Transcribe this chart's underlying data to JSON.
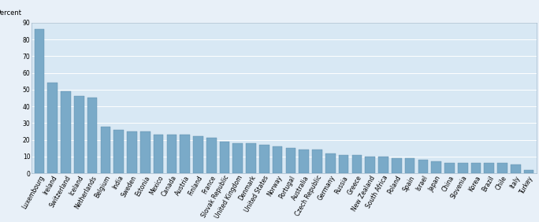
{
  "categories": [
    "Luxembourg",
    "Ireland",
    "Switzerland",
    "Iceland",
    "Netherlands",
    "Belgium",
    "India",
    "Sweden",
    "Estonia",
    "Mexico",
    "Canada",
    "Austria",
    "Finland",
    "France",
    "Slovak Republic",
    "United Kingdom",
    "Denmark",
    "United States",
    "Norway",
    "Portugal",
    "Australia",
    "Czech Republic",
    "Germany",
    "Russia",
    "Greece",
    "New Zealand",
    "South Africa",
    "Poland",
    "Spain",
    "Israel",
    "Japan",
    "China",
    "Slovenia",
    "Korea",
    "Brazil",
    "Chile",
    "Italy",
    "Turkey"
  ],
  "values": [
    86,
    54,
    49,
    46,
    45,
    28,
    26,
    25,
    25,
    23,
    23,
    23,
    22,
    21,
    19,
    18,
    18,
    17,
    16,
    15,
    14,
    14,
    12,
    11,
    11,
    10,
    10,
    9,
    9,
    8,
    7,
    6,
    6,
    6,
    6,
    6,
    5,
    2
  ],
  "bar_color": "#7aaac8",
  "bar_edge_color": "#5a8aaa",
  "background_color": "#e8f0f8",
  "plot_bg_color": "#d8e8f4",
  "percent_label": "Percent",
  "ylim": [
    0,
    90
  ],
  "yticks": [
    0,
    10,
    20,
    30,
    40,
    50,
    60,
    70,
    80,
    90
  ],
  "grid_color": "#ffffff",
  "tick_fontsize": 5.5,
  "label_fontsize": 5.5
}
